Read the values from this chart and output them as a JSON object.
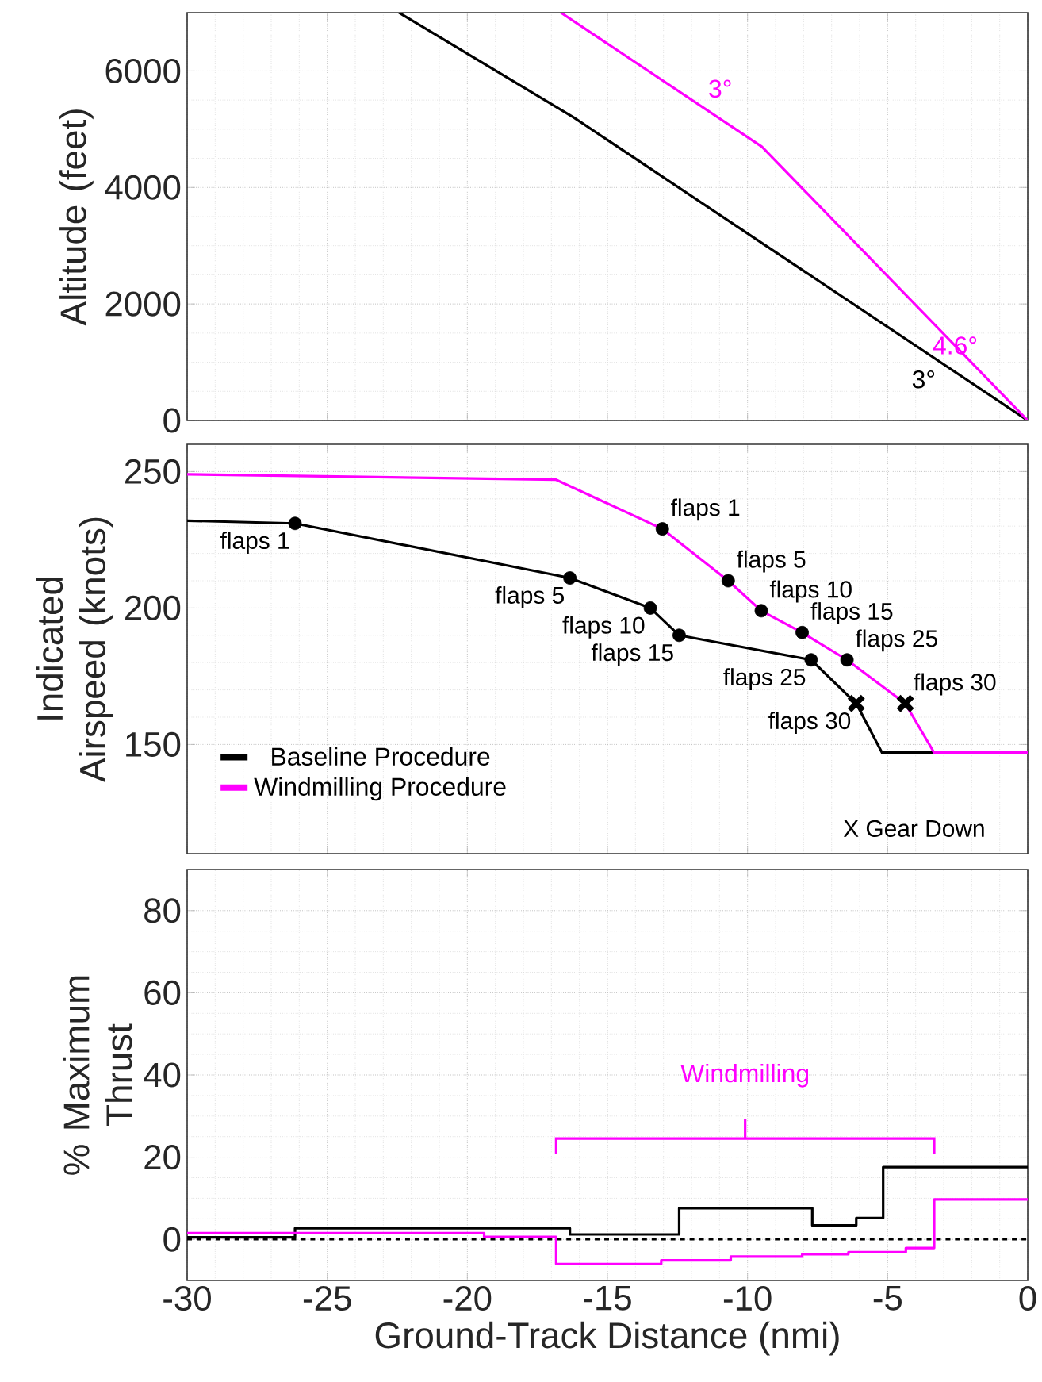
{
  "chart_data": [
    {
      "type": "line",
      "ylabel": "Altitude (feet)",
      "xlim": [
        -30,
        0
      ],
      "xticks": [
        -30,
        -25,
        -20,
        -15,
        -10,
        -5,
        0
      ],
      "ylim": [
        0,
        7000
      ],
      "yticks": [
        0,
        2000,
        4000,
        6000
      ],
      "grid": true,
      "tick_labels": "y",
      "series": [
        {
          "color": "#000000",
          "x": [
            -22.44,
            -16.2,
            0
          ],
          "values": [
            7000,
            5200,
            0
          ]
        },
        {
          "color": "#ff00ff",
          "x": [
            -16.66,
            -9.49,
            0
          ],
          "values": [
            7000,
            4700,
            0
          ]
        }
      ],
      "annotations": [
        {
          "text": "3°",
          "x": -11.7,
          "y": 5400
        },
        {
          "text": "4.6°",
          "x": -1.6,
          "y": 800
        },
        {
          "text": "3°",
          "x": -3.1,
          "y": 1000
        }
      ]
    },
    {
      "type": "line",
      "ylabel": "Indicated Airspeed (knots)",
      "xlim": [
        -30,
        0
      ],
      "xticks": [
        -30,
        -25,
        -20,
        -15,
        -10,
        -5,
        0
      ],
      "ylim": [
        110,
        260
      ],
      "yticks": [
        150,
        200,
        250
      ],
      "grid": true,
      "tick_labels": "y",
      "legend": "bottom left",
      "series": [
        {
          "name": "Baseline Procedure",
          "color": "#000000",
          "x": [
            -30,
            -26.15,
            -16.34,
            -13.47,
            -12.44,
            -7.73,
            -6.12,
            -5.2,
            0
          ],
          "values": [
            232,
            231,
            211,
            200,
            190,
            181,
            165,
            147,
            147
          ]
        },
        {
          "name": "Windmilling Procedure",
          "color": "#ff00ff",
          "x": [
            -30,
            -16.83,
            -13.04,
            -10.69,
            -9.51,
            -8.05,
            -6.45,
            -4.37,
            -3.34,
            0
          ],
          "values": [
            249,
            247,
            229,
            210,
            199,
            191,
            181,
            165,
            147,
            147
          ]
        },
        {
          "type": "scatter",
          "marker": "circle",
          "color": "#000000",
          "x": [
            -26.15,
            -16.34,
            -13.47,
            -12.44,
            -7.73,
            -13.04,
            -10.69,
            -9.51,
            -8.05,
            -6.45
          ],
          "values": [
            231,
            211,
            200,
            190,
            181,
            229,
            210,
            199,
            191,
            181
          ]
        },
        {
          "type": "scatter",
          "marker": "cross",
          "color": "#000000",
          "x": [
            -6.12,
            -4.37
          ],
          "values": [
            165,
            165
          ]
        }
      ],
      "annotations": [
        {
          "text": "flaps 1",
          "x": -26.15,
          "y": 231
        },
        {
          "text": "flaps 5",
          "x": -16.34,
          "y": 211
        },
        {
          "text": "flaps 10",
          "x": -13.47,
          "y": 200
        },
        {
          "text": "flaps 15",
          "x": -12.44,
          "y": 190
        },
        {
          "text": "flaps 25",
          "x": -7.73,
          "y": 181
        },
        {
          "text": "flaps 30",
          "x": -6.12,
          "y": 165
        },
        {
          "text": "flaps 1",
          "x": -13.04,
          "y": 229
        },
        {
          "text": "flaps 5",
          "x": -10.69,
          "y": 210
        },
        {
          "text": "flaps 10",
          "x": -9.51,
          "y": 199
        },
        {
          "text": "flaps 15",
          "x": -8.05,
          "y": 191
        },
        {
          "text": "flaps 25",
          "x": -6.45,
          "y": 181
        },
        {
          "text": "flaps 30",
          "x": -4.37,
          "y": 165
        },
        "X Gear Down"
      ]
    },
    {
      "type": "step",
      "xlabel": "Ground-Track Distance (nmi)",
      "ylabel": "% Maximum Thrust",
      "xlim": [
        -30,
        0
      ],
      "xticks": [
        -30,
        -25,
        -20,
        -15,
        -10,
        -5,
        0
      ],
      "ylim": [
        -10,
        90
      ],
      "yticks": [
        0,
        20,
        40,
        60,
        80
      ],
      "grid": true,
      "series": [
        {
          "color": "#000000",
          "x": [
            -30,
            -26.15,
            -16.34,
            -12.44,
            -7.69,
            -6.12,
            -5.16,
            0
          ],
          "values": [
            0.5,
            2.7,
            1.2,
            7.6,
            3.4,
            5.2,
            17.6,
            17.6
          ]
        },
        {
          "color": "#ff00ff",
          "x": [
            -30,
            -19.4,
            -16.83,
            -13.08,
            -10.6,
            -8.05,
            -6.4,
            -4.35,
            -3.34,
            0
          ],
          "values": [
            1.5,
            0.6,
            -6,
            -5.1,
            -4.2,
            -3.6,
            -3.1,
            -2.1,
            9.7,
            9.7
          ]
        }
      ],
      "ref_lines": [
        {
          "axis": "y",
          "value": 0,
          "color": "#000000",
          "line_style": "dashed"
        }
      ],
      "annotations": [
        "Windmilling"
      ]
    }
  ]
}
